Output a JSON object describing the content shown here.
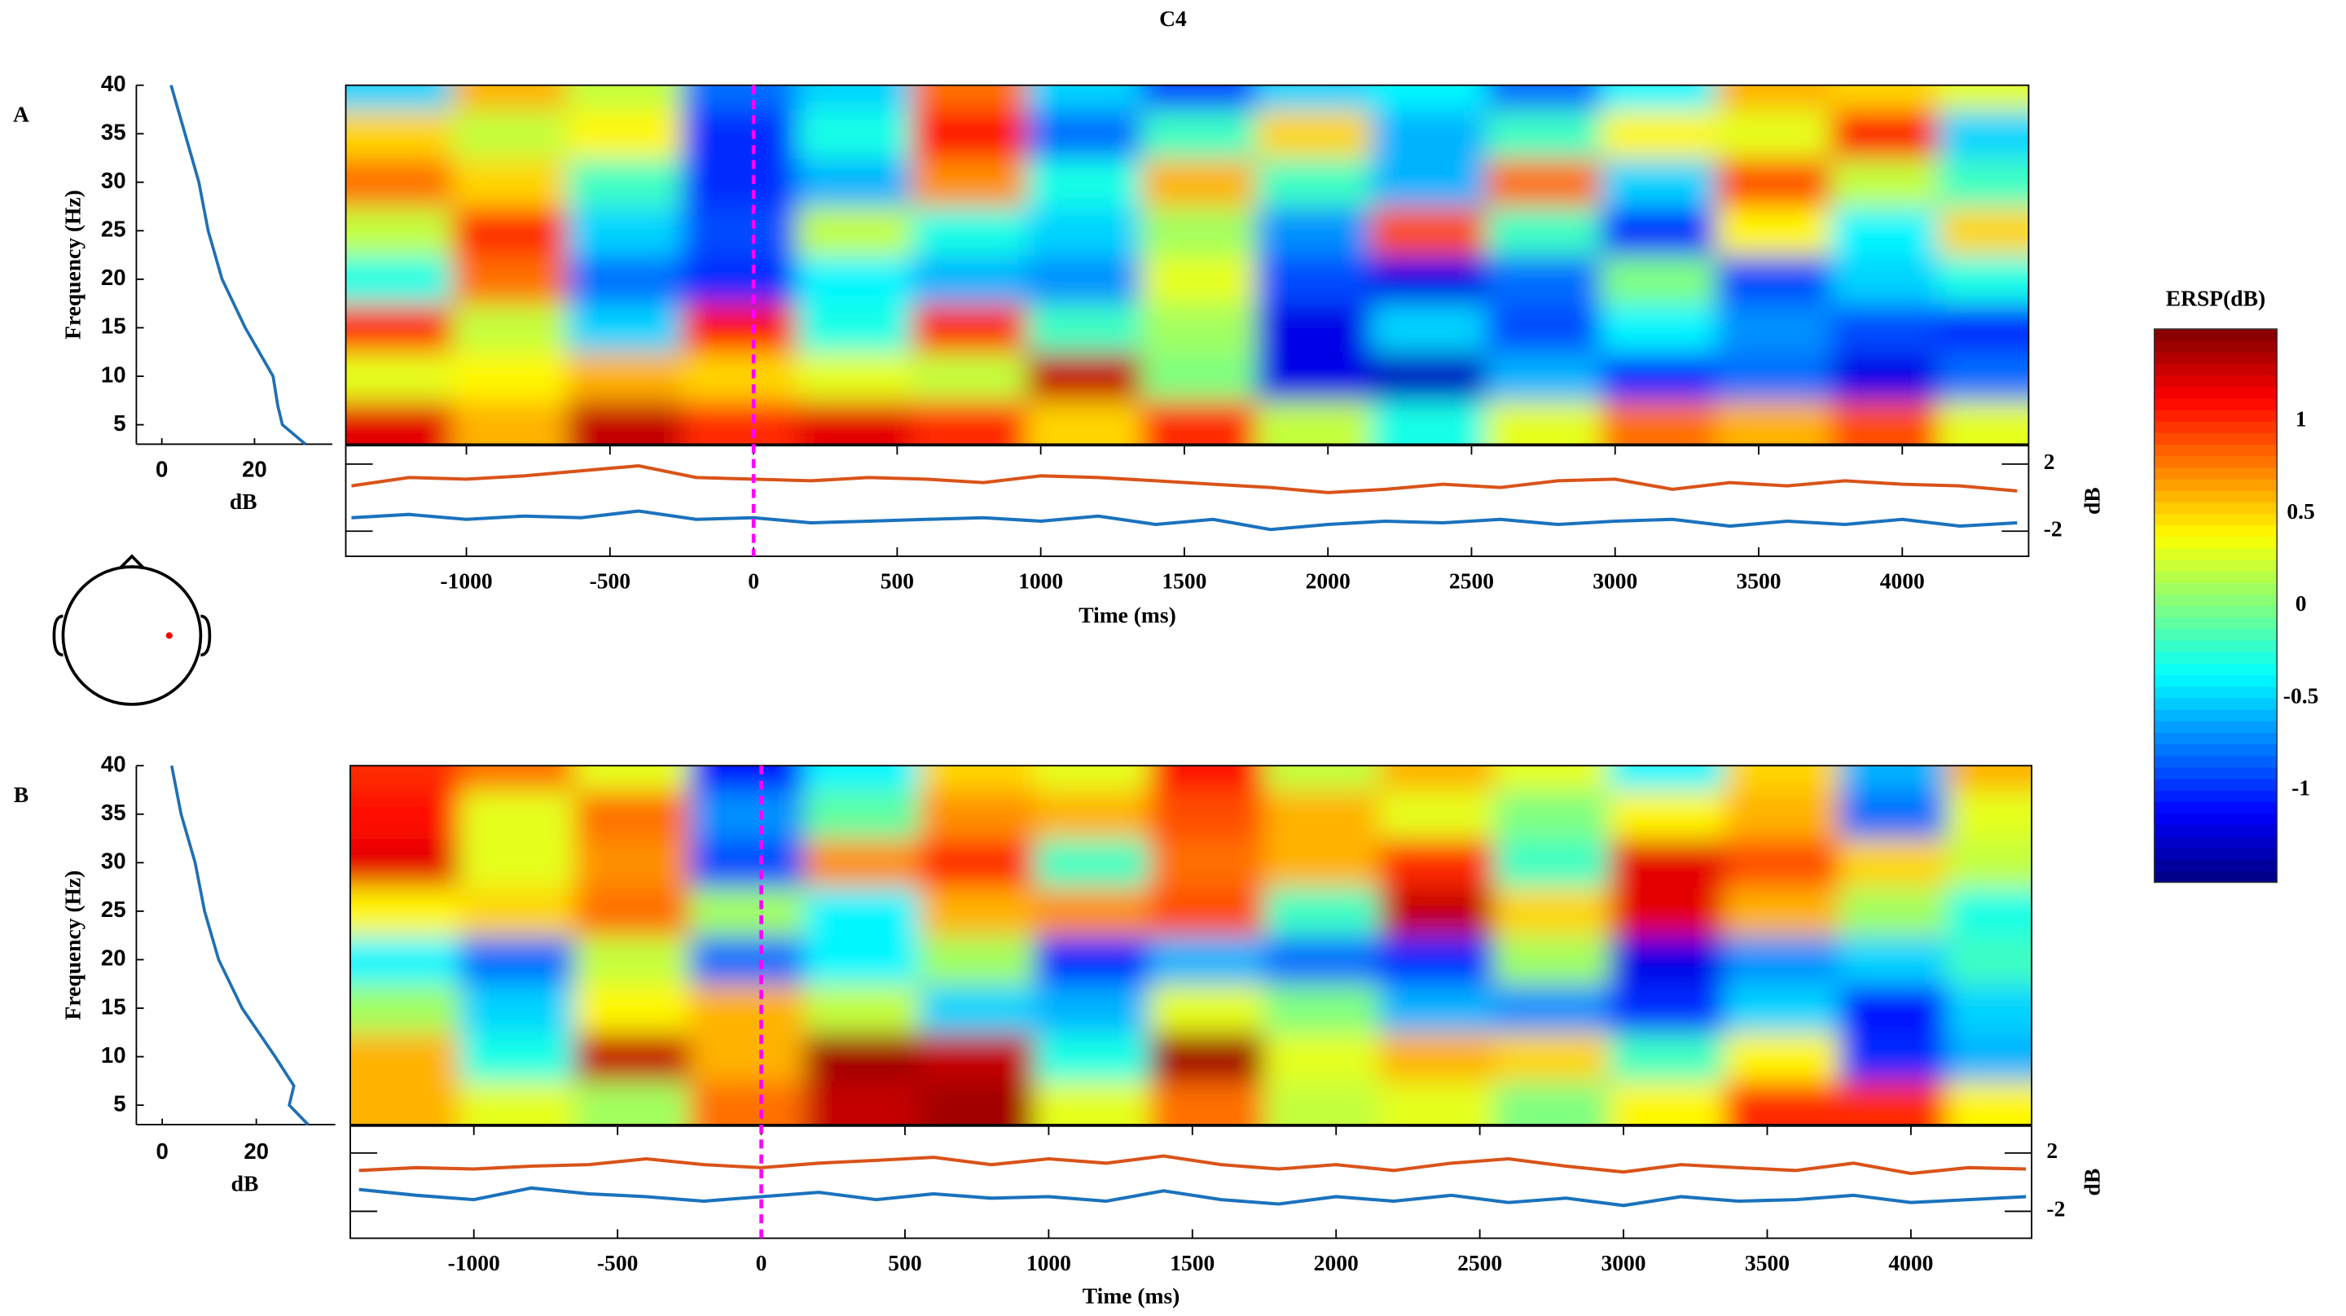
{
  "colorbar": {
    "label": "ERSP(dB)",
    "clim": [
      -1.5,
      1.5
    ],
    "ticks": [
      1,
      0.5,
      0,
      -0.5,
      -1
    ]
  },
  "chart_data": [
    {
      "type": "heatmap",
      "title": "C4",
      "panel_label": "A",
      "ylabel": "Frequency (Hz)",
      "xlabel": "Time (ms)",
      "xlim": [
        -1420,
        4440
      ],
      "ylim": [
        3,
        40
      ],
      "xticks": [
        -1000,
        -500,
        0,
        500,
        1000,
        1500,
        2000,
        2500,
        3000,
        3500,
        4000
      ],
      "yticks": [
        5,
        10,
        15,
        20,
        25,
        30,
        35,
        40
      ],
      "x": [
        -1250,
        -850,
        -450,
        -50,
        350,
        750,
        1150,
        1550,
        1950,
        2350,
        2750,
        3150,
        3550,
        3950,
        4300
      ],
      "y": [
        5,
        10,
        15,
        20,
        25,
        30,
        35,
        40
      ],
      "z": [
        [
          1.2,
          0.6,
          1.3,
          1.0,
          1.2,
          1.0,
          0.5,
          1.0,
          0.2,
          -0.3,
          0.3,
          0.8,
          0.6,
          0.9,
          0.3
        ],
        [
          0.3,
          0.4,
          0.6,
          0.5,
          0.3,
          0.2,
          1.3,
          0.0,
          -1.2,
          -1.3,
          -0.6,
          -1.0,
          -0.8,
          -1.2,
          -0.8
        ],
        [
          1.0,
          0.2,
          -0.5,
          1.1,
          -0.3,
          1.0,
          -0.2,
          0.1,
          -1.2,
          -0.5,
          -0.9,
          -0.4,
          -0.7,
          -0.9,
          -1.0
        ],
        [
          -0.3,
          0.8,
          -0.8,
          -1.0,
          -0.4,
          -0.6,
          -0.7,
          0.3,
          -0.9,
          -1.2,
          -0.8,
          0.0,
          -0.9,
          -0.5,
          -0.3
        ],
        [
          0.2,
          1.0,
          -0.5,
          -0.9,
          0.2,
          -0.3,
          -0.5,
          0.1,
          -0.7,
          0.9,
          -0.2,
          -1.0,
          0.4,
          -0.4,
          0.5
        ],
        [
          0.8,
          0.5,
          -0.2,
          -1.0,
          -0.6,
          0.7,
          -0.3,
          0.6,
          -0.2,
          -0.6,
          0.8,
          -0.5,
          0.9,
          0.2,
          -0.2
        ],
        [
          0.5,
          0.2,
          0.4,
          -1.0,
          -0.3,
          1.1,
          -0.8,
          -0.2,
          0.5,
          -0.6,
          -0.2,
          0.4,
          0.3,
          1.1,
          -0.5
        ],
        [
          -0.5,
          0.6,
          0.2,
          -0.8,
          -0.5,
          0.8,
          -0.5,
          -0.9,
          -0.5,
          -0.4,
          -0.8,
          -0.4,
          0.6,
          0.5,
          0.3
        ]
      ],
      "event_x": 0,
      "event_color": "#ff00ff",
      "spectrum": {
        "xlabel": "dB",
        "xlim": [
          -5.5,
          36.8
        ],
        "xticks": [
          0,
          20
        ],
        "freqs": [
          3,
          5,
          7,
          10,
          15,
          20,
          25,
          30,
          35,
          40
        ],
        "values": [
          31,
          26,
          25,
          24,
          18,
          13,
          10,
          8,
          5,
          2
        ],
        "color": "#1f6fb4"
      },
      "traces": {
        "y2label": "dB",
        "y2lim": [
          -3.5,
          3.1
        ],
        "y2ticks": [
          2,
          -2
        ],
        "x": [
          -1400,
          -1200,
          -1000,
          -800,
          -600,
          -400,
          -200,
          0,
          200,
          400,
          600,
          800,
          1000,
          1200,
          1400,
          1600,
          1800,
          2000,
          2200,
          2400,
          2600,
          2800,
          3000,
          3200,
          3400,
          3600,
          3800,
          4000,
          4200,
          4400
        ],
        "series": [
          {
            "color": "#d95319",
            "values": [
              0.7,
              1.2,
              1.1,
              1.3,
              1.6,
              1.9,
              1.2,
              1.1,
              1.0,
              1.2,
              1.1,
              0.9,
              1.3,
              1.2,
              1.0,
              0.8,
              0.6,
              0.3,
              0.5,
              0.8,
              0.6,
              1.0,
              1.1,
              0.5,
              0.9,
              0.7,
              1.0,
              0.8,
              0.7,
              0.4
            ]
          },
          {
            "color": "#1a72bd",
            "values": [
              -1.2,
              -1.0,
              -1.3,
              -1.1,
              -1.2,
              -0.8,
              -1.3,
              -1.2,
              -1.5,
              -1.4,
              -1.3,
              -1.2,
              -1.4,
              -1.1,
              -1.6,
              -1.3,
              -1.9,
              -1.6,
              -1.4,
              -1.5,
              -1.3,
              -1.6,
              -1.4,
              -1.3,
              -1.7,
              -1.4,
              -1.6,
              -1.3,
              -1.7,
              -1.5
            ]
          }
        ]
      }
    },
    {
      "type": "heatmap",
      "panel_label": "B",
      "ylabel": "Frequency (Hz)",
      "xlabel": "Time (ms)",
      "xlim": [
        -1430,
        4420
      ],
      "ylim": [
        3,
        40
      ],
      "xticks": [
        -1000,
        -500,
        0,
        500,
        1000,
        1500,
        2000,
        2500,
        3000,
        3500,
        4000
      ],
      "yticks": [
        5,
        10,
        15,
        20,
        25,
        30,
        35,
        40
      ],
      "x": [
        -1250,
        -850,
        -450,
        -50,
        350,
        750,
        1150,
        1550,
        1950,
        2350,
        2750,
        3150,
        3550,
        3950,
        4300
      ],
      "y": [
        5,
        10,
        15,
        20,
        25,
        30,
        35,
        40
      ],
      "z": [
        [
          0.6,
          0.3,
          0.1,
          0.8,
          1.3,
          1.4,
          0.3,
          0.8,
          0.2,
          0.3,
          0.0,
          0.4,
          1.0,
          1.0,
          0.4
        ],
        [
          0.6,
          -0.3,
          1.3,
          0.6,
          1.4,
          1.3,
          -0.3,
          1.4,
          0.3,
          0.6,
          0.5,
          -0.2,
          0.4,
          -1.0,
          -0.6
        ],
        [
          0.1,
          -0.5,
          0.4,
          0.6,
          0.2,
          -0.5,
          -0.6,
          0.3,
          0.0,
          -0.6,
          -0.7,
          -1.0,
          -0.5,
          -1.1,
          -0.5
        ],
        [
          -0.4,
          -0.8,
          0.2,
          -0.8,
          -0.4,
          0.1,
          -1.0,
          -0.6,
          -0.8,
          -1.0,
          0.1,
          -1.2,
          -0.7,
          -0.5,
          -0.2
        ],
        [
          0.4,
          0.5,
          0.8,
          0.1,
          -0.4,
          0.6,
          0.7,
          0.9,
          -0.2,
          1.3,
          0.5,
          1.2,
          0.6,
          0.1,
          -0.3
        ],
        [
          1.2,
          0.3,
          0.7,
          -0.9,
          0.7,
          1.0,
          -0.2,
          0.8,
          0.6,
          1.0,
          -0.2,
          1.2,
          0.9,
          0.5,
          0.2
        ],
        [
          1.1,
          0.3,
          0.8,
          -0.7,
          -0.1,
          0.7,
          0.6,
          0.9,
          0.6,
          0.3,
          0.0,
          0.4,
          0.6,
          -0.8,
          0.3
        ],
        [
          1.0,
          0.8,
          0.3,
          -1.1,
          -0.4,
          0.5,
          0.3,
          1.1,
          0.2,
          0.6,
          0.3,
          -0.4,
          0.5,
          -0.6,
          0.6
        ]
      ],
      "event_x": 0,
      "event_color": "#ff00ff",
      "spectrum": {
        "xlabel": "dB",
        "xlim": [
          -5.5,
          36.8
        ],
        "xticks": [
          0,
          20
        ],
        "freqs": [
          3,
          5,
          7,
          10,
          15,
          20,
          25,
          30,
          35,
          40
        ],
        "values": [
          31,
          27,
          28,
          24,
          17,
          12,
          9,
          7,
          4,
          2
        ],
        "color": "#1f6fb4"
      },
      "traces": {
        "y2label": "dB",
        "y2lim": [
          -3.85,
          3.85
        ],
        "y2ticks": [
          2,
          -2
        ],
        "x": [
          -1400,
          -1200,
          -1000,
          -800,
          -600,
          -400,
          -200,
          0,
          200,
          400,
          600,
          800,
          1000,
          1200,
          1400,
          1600,
          1800,
          2000,
          2200,
          2400,
          2600,
          2800,
          3000,
          3200,
          3400,
          3600,
          3800,
          4000,
          4200,
          4400
        ],
        "series": [
          {
            "color": "#d95319",
            "values": [
              0.8,
              1.0,
              0.9,
              1.1,
              1.2,
              1.6,
              1.2,
              1.0,
              1.3,
              1.5,
              1.7,
              1.2,
              1.6,
              1.3,
              1.8,
              1.2,
              0.9,
              1.2,
              0.8,
              1.3,
              1.6,
              1.1,
              0.7,
              1.2,
              1.0,
              0.8,
              1.3,
              0.6,
              1.0,
              0.9
            ]
          },
          {
            "color": "#1a72bd",
            "values": [
              -0.5,
              -0.9,
              -1.2,
              -0.4,
              -0.8,
              -1.0,
              -1.3,
              -1.0,
              -0.7,
              -1.2,
              -0.8,
              -1.1,
              -1.0,
              -1.3,
              -0.6,
              -1.2,
              -1.5,
              -1.0,
              -1.3,
              -0.9,
              -1.4,
              -1.1,
              -1.6,
              -1.0,
              -1.3,
              -1.2,
              -0.9,
              -1.4,
              -1.2,
              -1.0
            ]
          }
        ]
      }
    }
  ]
}
